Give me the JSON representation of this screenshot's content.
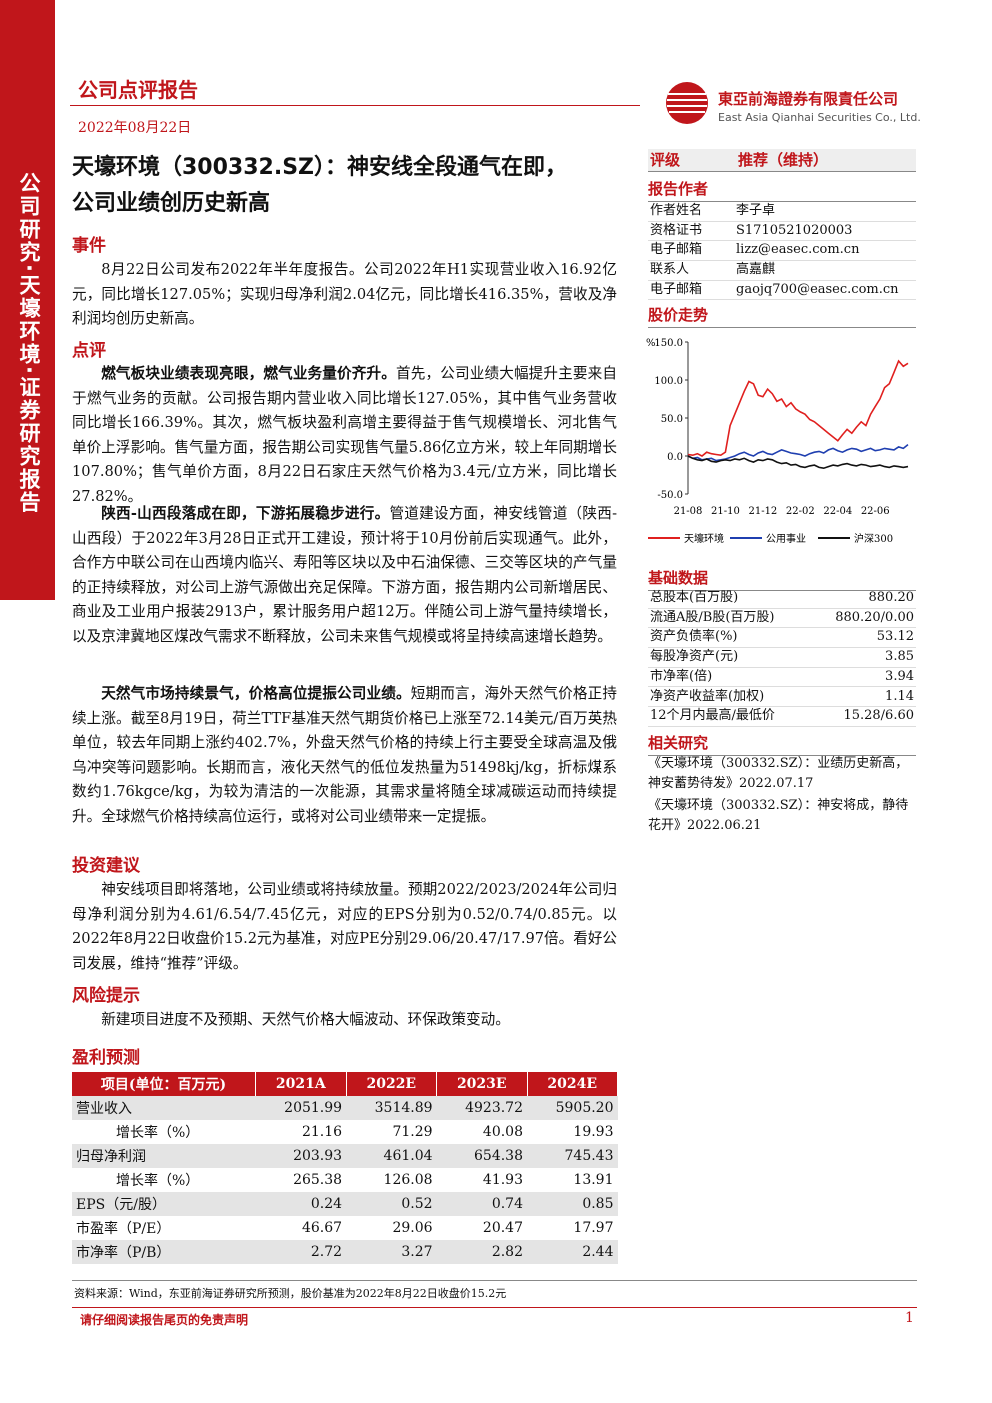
{
  "sidebar": "公司研究·天壕环境·证券研究报告",
  "header": {
    "report_type": "公司点评报告",
    "date": "2022年08月22日",
    "company_cn": "東亞前海證券有限責任公司",
    "company_en": "East Asia Qianhai Securities Co., Ltd."
  },
  "title": [
    "天壕环境（300332.SZ）：神安线全段通气在即，",
    "公司业绩创历史新高"
  ],
  "event": {
    "heading": "事件",
    "text": "8月22日公司发布2022年半年度报告。公司2022年H1实现营业收入16.92亿元，同比增长127.05%；实现归母净利润2.04亿元，同比增长416.35%，营收及净利润均创历史新高。"
  },
  "review": {
    "heading": "点评",
    "paragraphs": [
      {
        "lead": "燃气板块业绩表现亮眼，燃气业务量价齐升。",
        "text": "首先，公司业绩大幅提升主要来自于燃气业务的贡献。公司报告期内营业收入同比增长127.05%，其中售气业务营收同比增长166.39%。其次，燃气板块盈利高增主要得益于售气规模增长、河北售气单价上浮影响。售气量方面，报告期公司实现售气量5.86亿立方米，较上年同期增长107.80%；售气单价方面，8月22日石家庄天然气价格为3.4元/立方米，同比增长27.82%。"
      },
      {
        "lead": "陕西-山西段落成在即，下游拓展稳步进行。",
        "text": "管道建设方面，神安线管道（陕西-山西段）于2022年3月28日正式开工建设，预计将于10月份前后实现通气。此外，合作方中联公司在山西境内临兴、寿阳等区块以及中石油保德、三交等区块的产气量的正持续释放，对公司上游气源做出充足保障。下游方面，报告期内公司新增居民、商业及工业用户报装2913户，累计服务用户超12万。伴随公司上游气量持续增长，以及京津冀地区煤改气需求不断释放，公司未来售气规模或将呈持续高速增长趋势。"
      },
      {
        "lead": "天然气市场持续景气，价格高位提振公司业绩。",
        "text": "短期而言，海外天然气价格正持续上涨。截至8月19日，荷兰TTF基准天然气期货价格已上涨至72.14美元/百万英热单位，较去年同期上涨约402.7%，外盘天然气价格的持续上行主要受全球高温及俄乌冲突等问题影响。长期而言，液化天然气的低位发热量为51498kj/kg，折标煤系数约1.76kgce/kg，为较为清洁的一次能源，其需求量将随全球减碳运动而持续提升。全球燃气价格持续高位运行，或将对公司业绩带来一定提振。"
      }
    ]
  },
  "investment": {
    "heading": "投资建议",
    "text": "神安线项目即将落地，公司业绩或将持续放量。预期2022/2023/2024年公司归母净利润分别为4.61/6.54/7.45亿元，对应的EPS分别为0.52/0.74/0.85元。以2022年8月22日收盘价15.2元为基准，对应PE分别29.06/20.47/17.97倍。看好公司发展，维持“推荐”评级。"
  },
  "risk": {
    "heading": "风险提示",
    "text": "新建项目进度不及预期、天然气价格大幅波动、环保政策变动。"
  },
  "forecast": {
    "heading": "盈利预测",
    "columns": [
      "项目(单位：百万元)",
      "2021A",
      "2022E",
      "2023E",
      "2024E"
    ],
    "rows": [
      [
        "营业收入",
        "2051.99",
        "3514.89",
        "4923.72",
        "5905.20"
      ],
      [
        "增长率（%）",
        "21.16",
        "71.29",
        "40.08",
        "19.93"
      ],
      [
        "归母净利润",
        "203.93",
        "461.04",
        "654.38",
        "745.43"
      ],
      [
        "增长率（%）",
        "265.38",
        "126.08",
        "41.93",
        "13.91"
      ],
      [
        "EPS（元/股）",
        "0.24",
        "0.52",
        "0.74",
        "0.85"
      ],
      [
        "市盈率（P/E）",
        "46.67",
        "29.06",
        "20.47",
        "17.97"
      ],
      [
        "市净率（P/B）",
        "2.72",
        "3.27",
        "2.82",
        "2.44"
      ]
    ]
  },
  "source": "资料来源：Wind，东亚前海证券研究所预测，股价基准为2022年8月22日收盘价15.2元",
  "footer": {
    "notice": "请仔细阅读报告尾页的免责声明",
    "page": "1"
  },
  "rating": {
    "label": "评级",
    "value": "推荐（维持）"
  },
  "authors": {
    "heading": "报告作者",
    "rows": [
      [
        "作者姓名",
        "李子卓"
      ],
      [
        "资格证书",
        "S1710521020003"
      ],
      [
        "电子邮箱",
        "lizz@easec.com.cn"
      ],
      [
        "联系人",
        "高嘉麒"
      ],
      [
        "电子邮箱",
        "gaojq700@easec.com.cn"
      ]
    ]
  },
  "chart_heading": "股价走势",
  "chart_data": {
    "type": "line",
    "y_unit": "%",
    "categories": [
      "21-08",
      null,
      null,
      null,
      null,
      null,
      null,
      null,
      "21-10",
      null,
      null,
      null,
      null,
      null,
      null,
      null,
      "21-12",
      null,
      null,
      null,
      null,
      null,
      null,
      null,
      "22-02",
      null,
      null,
      null,
      null,
      null,
      null,
      null,
      "22-04",
      null,
      null,
      null,
      null,
      null,
      null,
      null,
      "22-06",
      null,
      null,
      null,
      null,
      null,
      null,
      null
    ],
    "ylim": [
      -50,
      150
    ],
    "yticks": [
      {
        "value": 150,
        "label": "150.0"
      },
      {
        "value": 100,
        "label": "100.0"
      },
      {
        "value": 50,
        "label": "50.0"
      },
      {
        "value": 0,
        "label": "0.0"
      },
      {
        "value": -50,
        "label": "-50.0"
      }
    ],
    "series": [
      {
        "name": "天壕环境",
        "color": "#e0201f",
        "values": [
          2,
          1,
          3,
          0,
          5,
          3,
          2,
          1,
          5,
          40,
          55,
          70,
          85,
          98,
          95,
          80,
          78,
          88,
          82,
          72,
          75,
          65,
          70,
          62,
          58,
          55,
          48,
          45,
          40,
          35,
          30,
          25,
          20,
          28,
          35,
          30,
          38,
          45,
          40,
          55,
          65,
          75,
          90,
          95,
          110,
          125,
          118,
          122
        ]
      },
      {
        "name": "公用事业",
        "color": "#1f3fb0",
        "values": [
          0,
          -3,
          -2,
          -5,
          -4,
          -3,
          -6,
          -5,
          -4,
          -2,
          0,
          3,
          5,
          2,
          0,
          4,
          6,
          3,
          2,
          5,
          8,
          6,
          4,
          3,
          2,
          0,
          3,
          5,
          6,
          4,
          8,
          10,
          7,
          5,
          8,
          10,
          9,
          6,
          8,
          10,
          7,
          8,
          10,
          9,
          8,
          12,
          10,
          15
        ]
      },
      {
        "name": "沪深300",
        "color": "#111111",
        "values": [
          0,
          -3,
          -5,
          -6,
          -4,
          -7,
          -8,
          -6,
          -5,
          -6,
          -4,
          -5,
          -3,
          -6,
          -8,
          -5,
          -6,
          -4,
          -5,
          -8,
          -10,
          -9,
          -12,
          -11,
          -14,
          -15,
          -13,
          -12,
          -15,
          -16,
          -14,
          -12,
          -13,
          -11,
          -10,
          -12,
          -13,
          -11,
          -12,
          -14,
          -13,
          -12,
          -14,
          -15,
          -13,
          -14,
          -15,
          -14
        ]
      }
    ]
  },
  "basic_data": {
    "heading": "基础数据",
    "rows": [
      [
        "总股本(百万股)",
        "880.20"
      ],
      [
        "流通A股/B股(百万股)",
        "880.20/0.00"
      ],
      [
        "资产负债率(%)",
        "53.12"
      ],
      [
        "每股净资产(元)",
        "3.85"
      ],
      [
        "市净率(倍)",
        "3.94"
      ],
      [
        "净资产收益率(加权)",
        "1.14"
      ],
      [
        "12个月内最高/最低价",
        "15.28/6.60"
      ]
    ]
  },
  "related": {
    "heading": "相关研究",
    "items": [
      "《天壕环境（300332.SZ）：业绩历史新高，神安蓄势待发》2022.07.17",
      "《天壕环境（300332.SZ）：神安将成，静待花开》2022.06.21"
    ]
  }
}
